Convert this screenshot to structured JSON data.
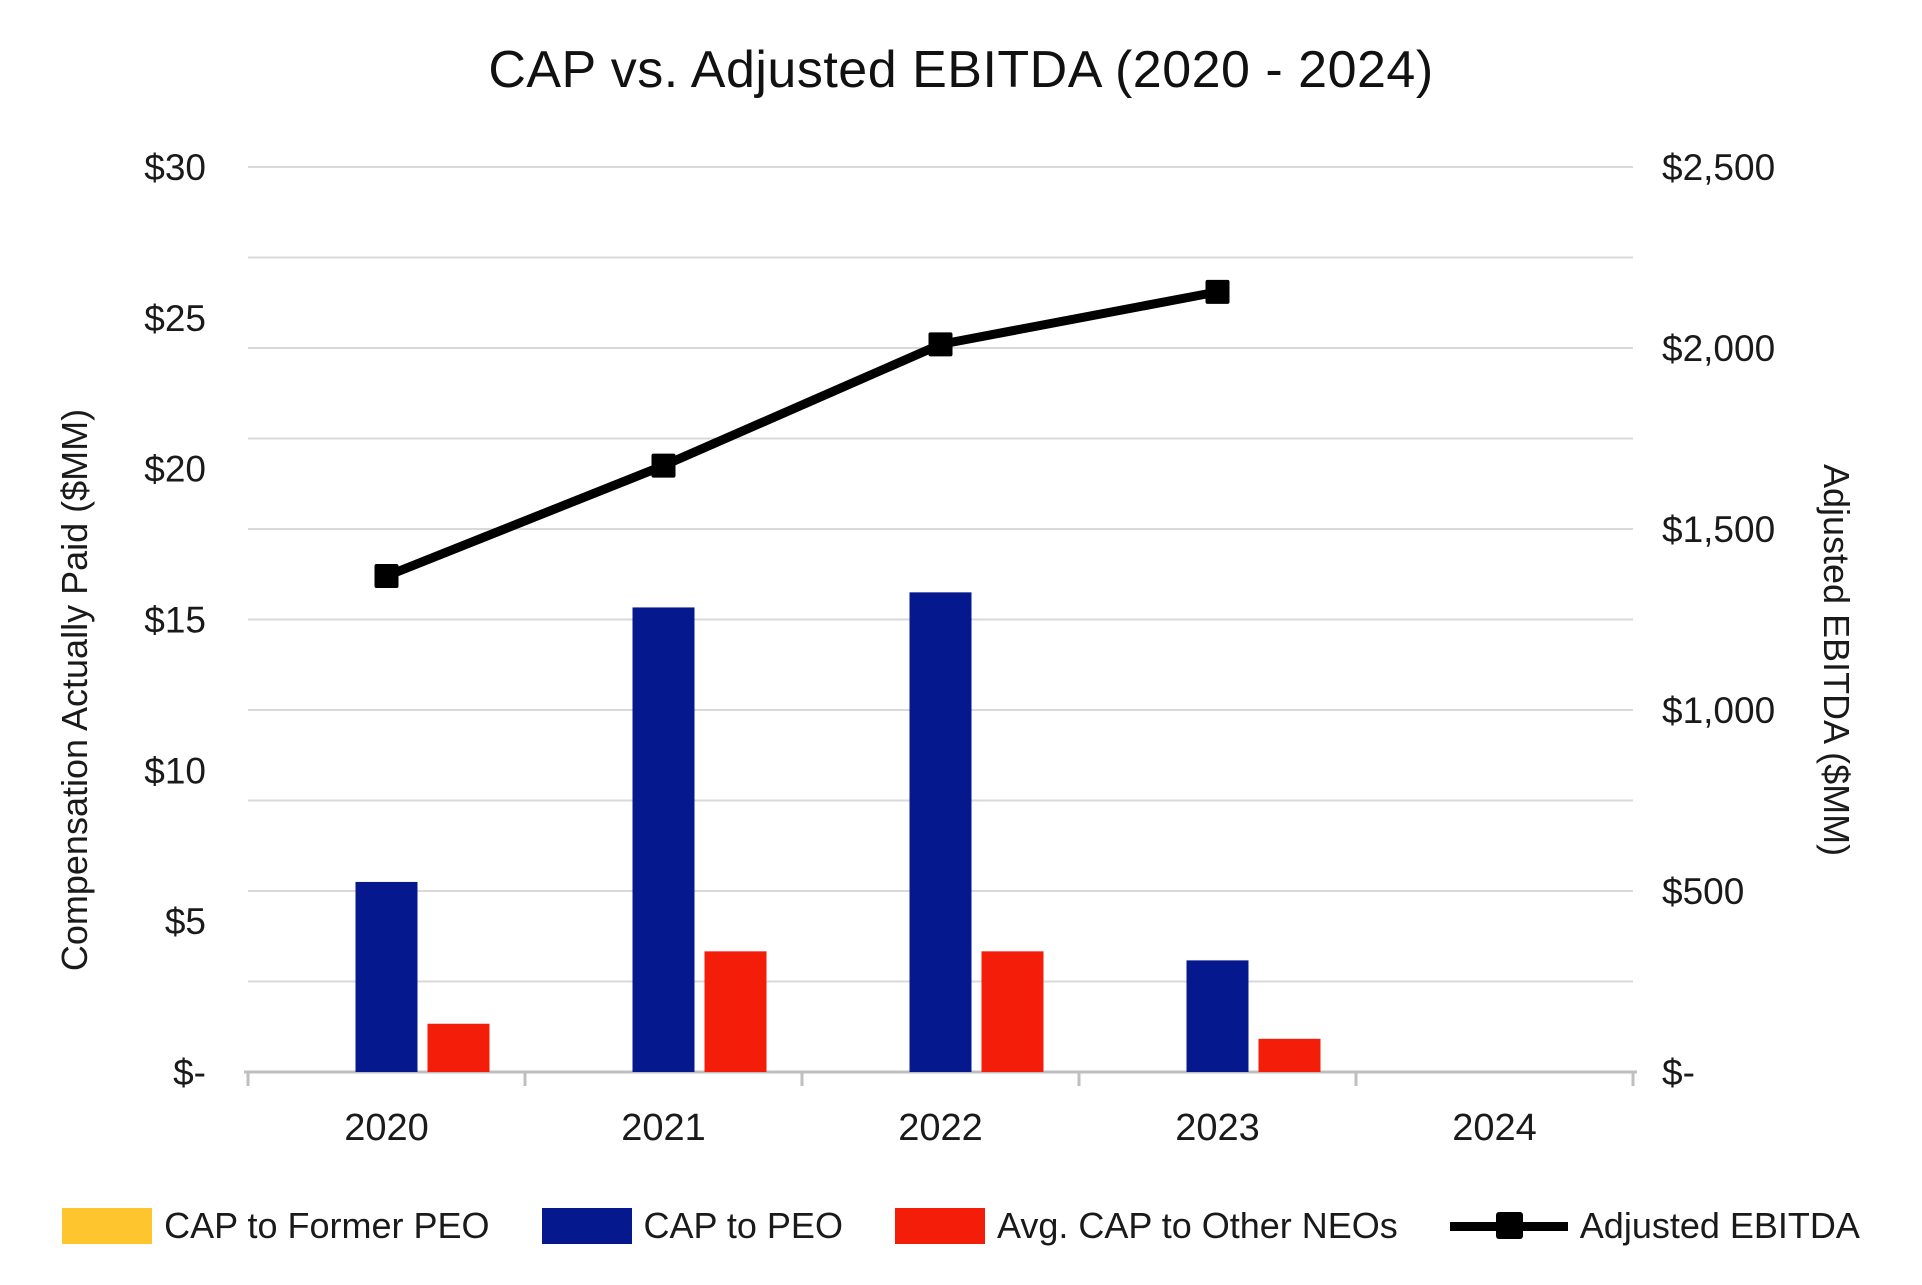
{
  "title": "CAP vs. Adjusted EBITDA (2020 - 2024)",
  "chart_data": {
    "type": "combo-bar-line",
    "categories": [
      "2020",
      "2021",
      "2022",
      "2023",
      "2024"
    ],
    "series": [
      {
        "name": "CAP to Former PEO",
        "type": "bar",
        "axis": "left",
        "color": "#ffc52e",
        "values": [
          0,
          0,
          0,
          0,
          0
        ]
      },
      {
        "name": "CAP to PEO",
        "type": "bar",
        "axis": "left",
        "color": "#05188e",
        "values": [
          6.3,
          15.4,
          15.9,
          3.7,
          null
        ]
      },
      {
        "name": "Avg. CAP to Other NEOs",
        "type": "bar",
        "axis": "left",
        "color": "#f41d0a",
        "values": [
          1.6,
          4.0,
          4.0,
          1.1,
          null
        ]
      },
      {
        "name": "Adjusted EBITDA",
        "type": "line",
        "axis": "right",
        "color": "#000000",
        "marker": "square",
        "values": [
          1370,
          1675,
          2010,
          2155,
          null
        ]
      }
    ],
    "left_axis": {
      "title": "Compensation Actually Paid ($MM)",
      "min": 0,
      "max": 30,
      "tick_values": [
        0,
        5,
        10,
        15,
        20,
        25,
        30
      ],
      "tick_labels": [
        "$-",
        "$5",
        "$10",
        "$15",
        "$20",
        "$25",
        "$30"
      ]
    },
    "right_axis": {
      "title": "Adjusted EBITDA ($MM)",
      "min": 0,
      "max": 2500,
      "tick_values": [
        0,
        500,
        1000,
        1500,
        2000,
        2500
      ],
      "tick_labels": [
        "$-",
        "$500",
        "$1,000",
        "$1,500",
        "$2,000",
        "$2,500"
      ]
    },
    "gridlines": {
      "on": true,
      "interval_right_axis": 250,
      "color": "#d9d9d9"
    },
    "axis_line_color": "#bfbfbf",
    "text_color": "#1a1a1a",
    "legend_position": "bottom"
  }
}
